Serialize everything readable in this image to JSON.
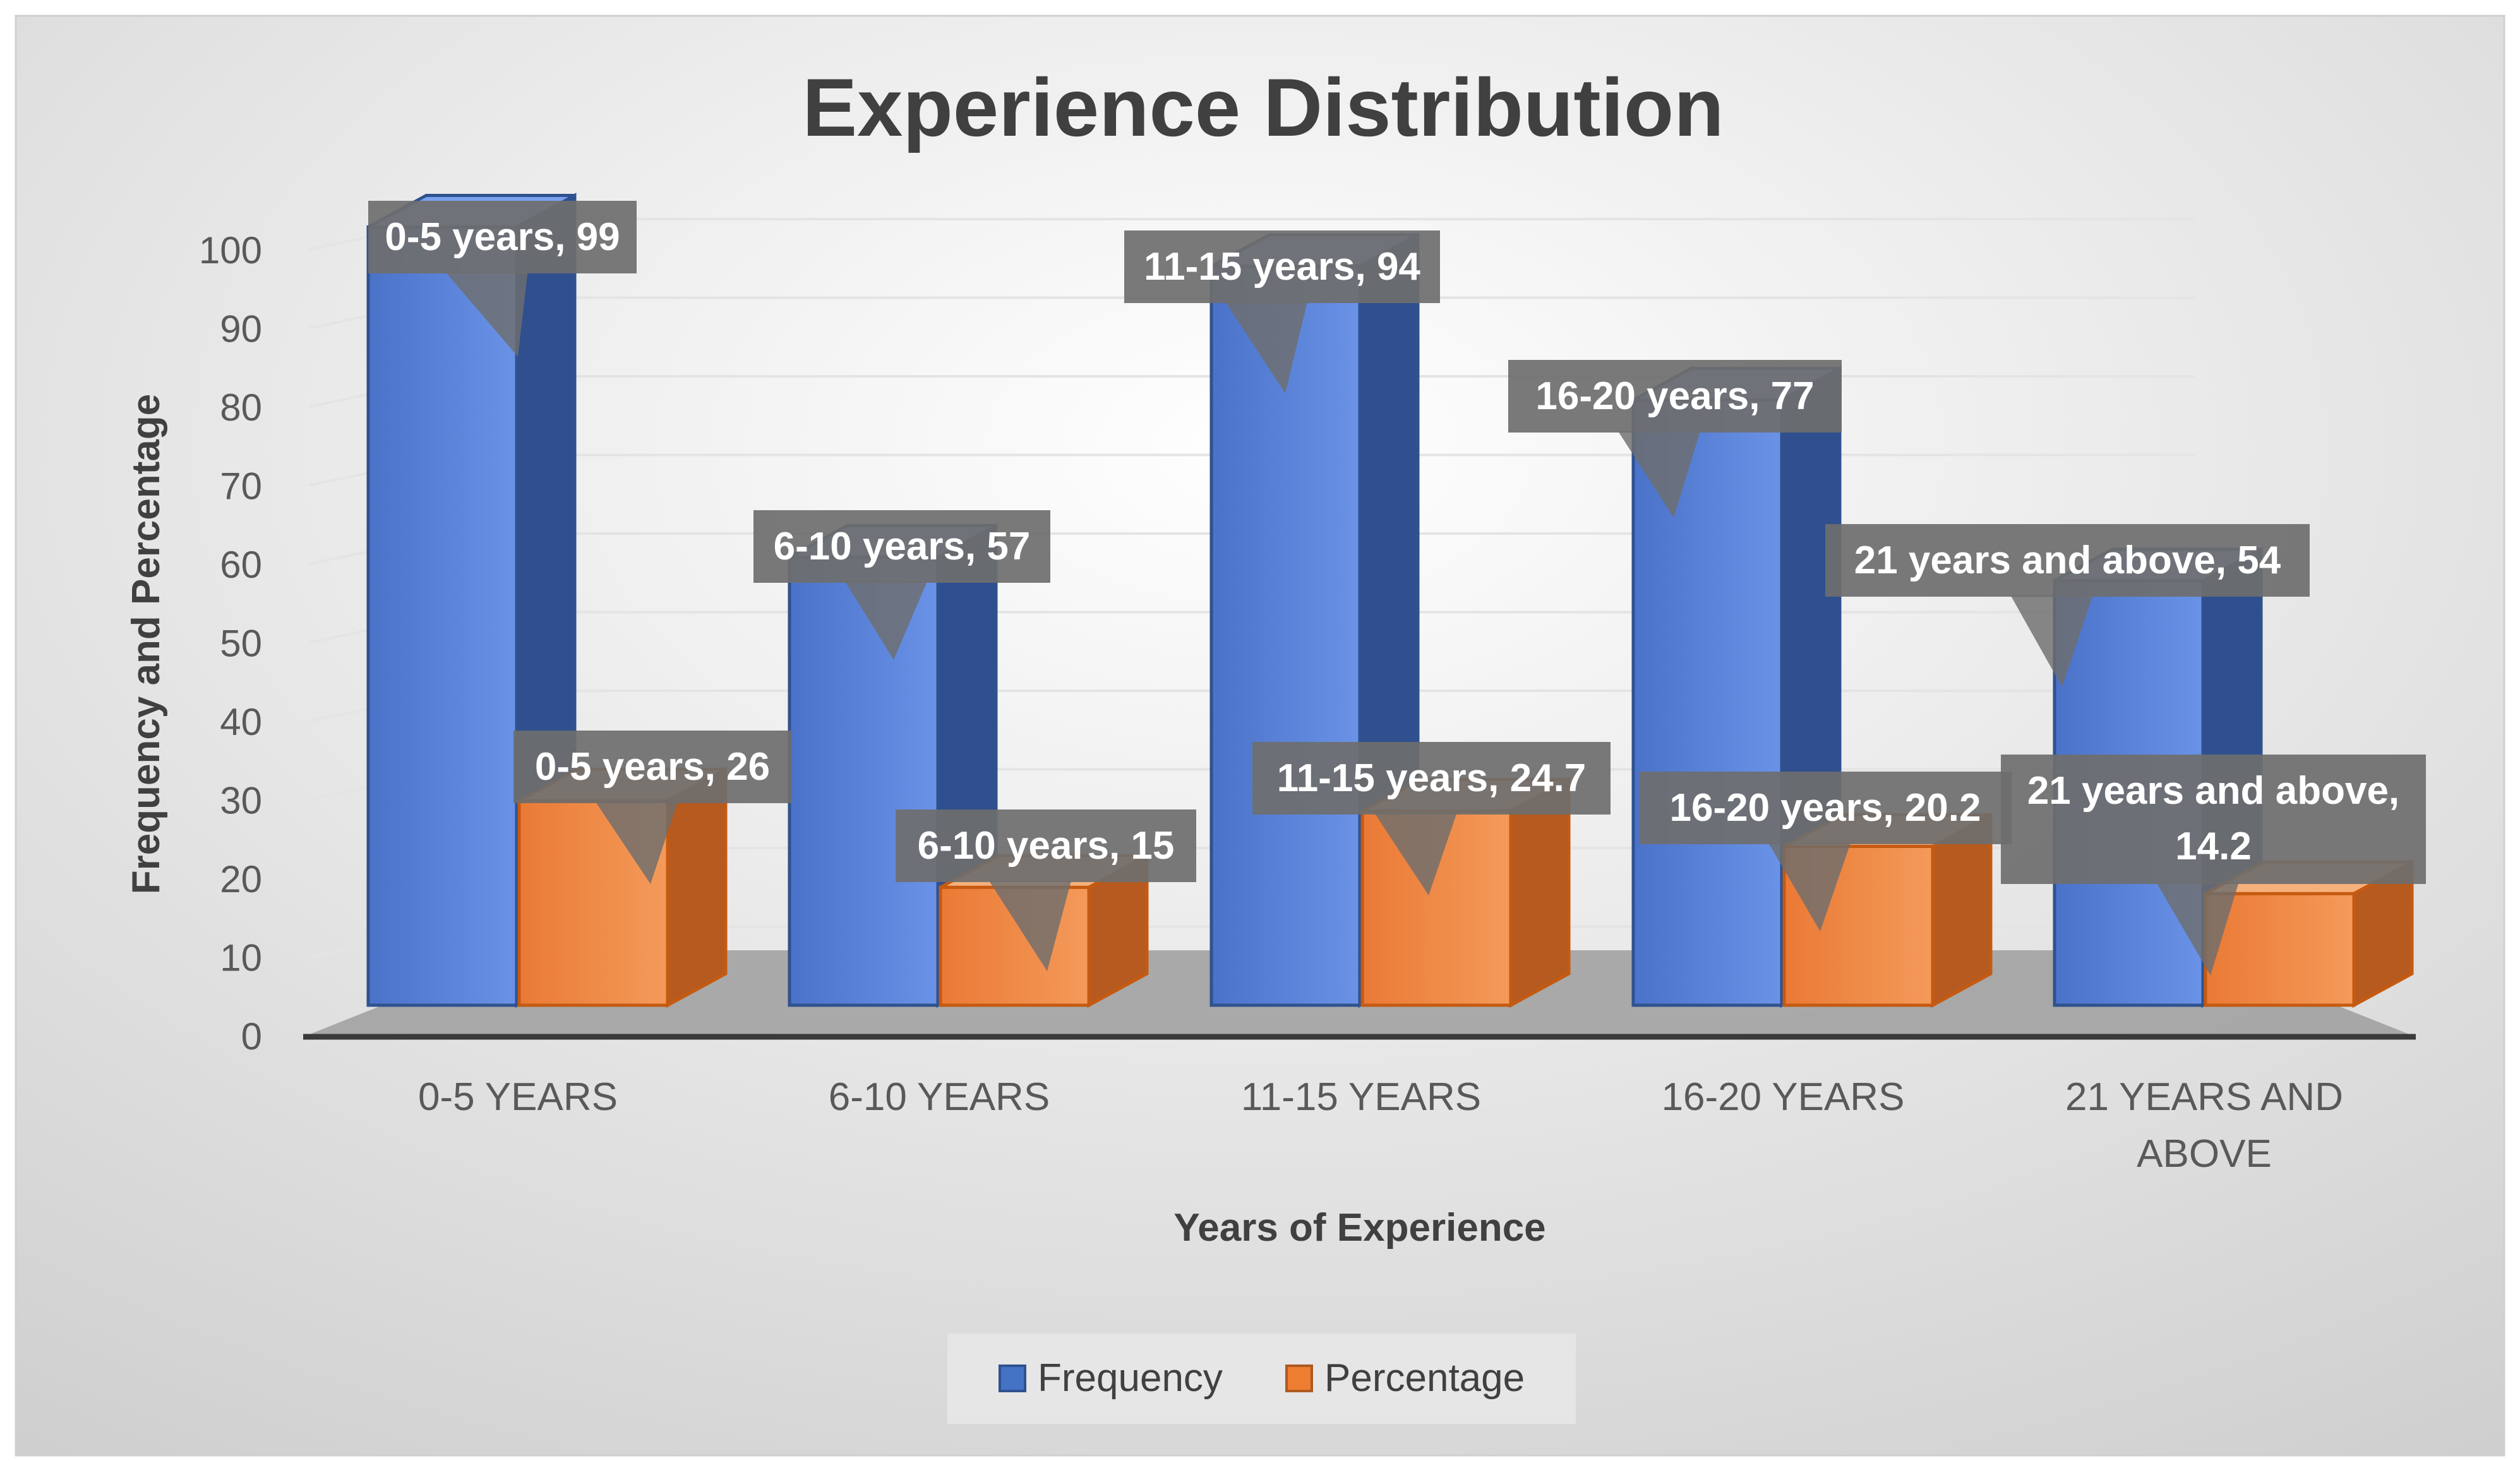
{
  "chart_data": {
    "type": "bar",
    "title": "Experience Distribution",
    "xlabel": "Years of Experience",
    "ylabel": "Frequency and Percentage",
    "ylim": [
      0,
      100
    ],
    "yticks": [
      0,
      10,
      20,
      30,
      40,
      50,
      60,
      70,
      80,
      90,
      100
    ],
    "grid": true,
    "legend_position": "bottom",
    "categories": [
      "0-5 YEARS",
      "6-10 YEARS",
      "11-15 YEARS",
      "16-20 YEARS",
      "21 YEARS AND ABOVE"
    ],
    "series": [
      {
        "name": "Frequency",
        "color": "#4472C4",
        "values": [
          99,
          57,
          94,
          77,
          54
        ],
        "data_labels": [
          "0-5 years, 99",
          "6-10 years, 57",
          "11-15 years, 94",
          "16-20 years, 77",
          "21 years and above, 54"
        ]
      },
      {
        "name": "Percentage",
        "color": "#ED7D31",
        "values": [
          26,
          15,
          24.7,
          20.2,
          14.2
        ],
        "data_labels": [
          "0-5 years, 26",
          "6-10 years, 15",
          "11-15 years, 24.7",
          "16-20 years, 20.2",
          "21 years and above, 14.2"
        ]
      }
    ]
  }
}
